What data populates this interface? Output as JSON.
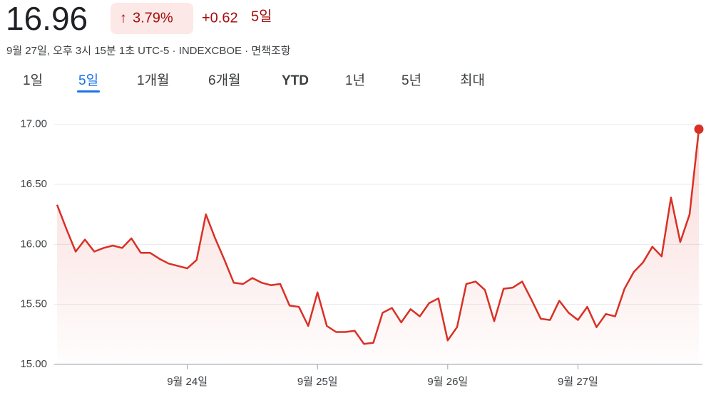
{
  "header": {
    "price": "16.96",
    "change_percent": "3.79%",
    "change": "+0.62",
    "period": "5일",
    "subtitle": "9월 27일, 오후 3시 15분 1초 UTC-5 · INDEXCBOE · 면책조항",
    "tabs": [
      "1일",
      "5일",
      "1개월",
      "6개월",
      "YTD",
      "1년",
      "5년",
      "최대"
    ],
    "selected_tab": 1
  },
  "chart_data": {
    "type": "line",
    "color": "#d93025",
    "values": [
      16.33,
      16.13,
      15.94,
      16.04,
      15.94,
      15.97,
      15.99,
      15.97,
      16.05,
      15.93,
      15.93,
      15.88,
      15.84,
      15.82,
      15.8,
      15.87,
      16.25,
      16.05,
      15.87,
      15.68,
      15.67,
      15.72,
      15.68,
      15.66,
      15.67,
      15.49,
      15.48,
      15.32,
      15.6,
      15.32,
      15.27,
      15.27,
      15.28,
      15.17,
      15.18,
      15.43,
      15.47,
      15.35,
      15.46,
      15.4,
      15.51,
      15.55,
      15.2,
      15.31,
      15.67,
      15.69,
      15.62,
      15.36,
      15.63,
      15.64,
      15.69,
      15.54,
      15.38,
      15.37,
      15.53,
      15.43,
      15.37,
      15.48,
      15.31,
      15.42,
      15.4,
      15.63,
      15.77,
      15.85,
      15.98,
      15.9,
      16.39,
      16.02,
      16.25,
      16.96
    ],
    "ylim": [
      15,
      17.2
    ],
    "yticks": [
      {
        "value": 15,
        "label": "15.00"
      },
      {
        "value": 15.5,
        "label": "15.50"
      },
      {
        "value": 16,
        "label": "16.00"
      },
      {
        "value": 16.5,
        "label": "16.50"
      },
      {
        "value": 17,
        "label": "17.00"
      }
    ],
    "xticks": [
      {
        "value": 14,
        "label": "9월 24일"
      },
      {
        "value": 28,
        "label": "9월 25일"
      },
      {
        "value": 42,
        "label": "9월 26일"
      },
      {
        "value": 56,
        "label": "9월 27일"
      }
    ],
    "grid": true
  }
}
